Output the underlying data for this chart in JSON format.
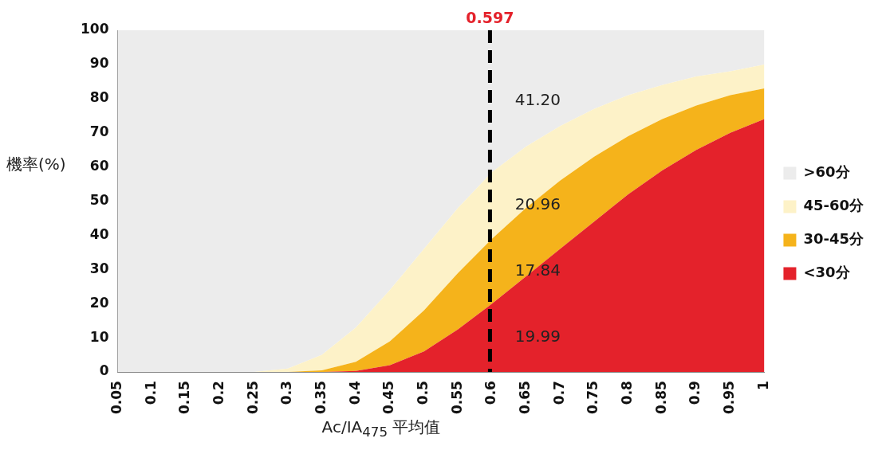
{
  "chart_data": {
    "type": "area",
    "stacked": true,
    "xlabel": "Ac/IA$_{475}$ 平均值",
    "ylabel": "機率(%)",
    "x": [
      0.05,
      0.1,
      0.15,
      0.2,
      0.25,
      0.3,
      0.35,
      0.4,
      0.45,
      0.5,
      0.55,
      0.6,
      0.65,
      0.7,
      0.75,
      0.8,
      0.85,
      0.9,
      0.95,
      1
    ],
    "xlim": [
      0.05,
      1
    ],
    "xticks": [
      0.05,
      0.1,
      0.15,
      0.2,
      0.25,
      0.3,
      0.35,
      0.4,
      0.45,
      0.5,
      0.55,
      0.6,
      0.65,
      0.7,
      0.75,
      0.8,
      0.85,
      0.9,
      0.95,
      1
    ],
    "ylim": [
      0,
      100
    ],
    "yticks": [
      0,
      10,
      20,
      30,
      40,
      50,
      60,
      70,
      80,
      90,
      100
    ],
    "series": [
      {
        "name": "<30分",
        "color": "#e4222b",
        "values": [
          0,
          0,
          0,
          0,
          0,
          0,
          0,
          0.3,
          2,
          6,
          12.5,
          20,
          28,
          36,
          44,
          52,
          59,
          65,
          70,
          74
        ]
      },
      {
        "name": "30-45分",
        "color": "#f5b31b",
        "values": [
          0,
          0,
          0,
          0,
          0,
          0,
          0.5,
          2.7,
          7,
          12,
          16.5,
          19,
          20,
          20,
          19,
          17,
          15,
          13,
          11,
          9
        ]
      },
      {
        "name": "45-60分",
        "color": "#fdf2c8",
        "values": [
          0,
          0,
          0,
          0,
          0,
          1,
          4.5,
          10,
          15,
          18,
          19,
          19.5,
          18,
          16,
          14,
          12,
          10,
          8.5,
          7,
          7
        ]
      },
      {
        "name": ">60分",
        "color": "#ececec",
        "values": [
          100,
          100,
          100,
          100,
          100,
          99,
          95,
          87,
          76,
          64,
          52,
          41.5,
          34,
          28,
          23,
          19,
          16,
          13.5,
          12,
          10
        ]
      }
    ],
    "ref_lines": [
      {
        "axis": "x",
        "value": 0.597,
        "label": "0.597",
        "color": "#000000",
        "line_style": "dashed"
      }
    ],
    "annotations": [
      "41.20",
      "20.96",
      "17.84",
      "19.99"
    ],
    "legend": "right",
    "grid": false
  }
}
